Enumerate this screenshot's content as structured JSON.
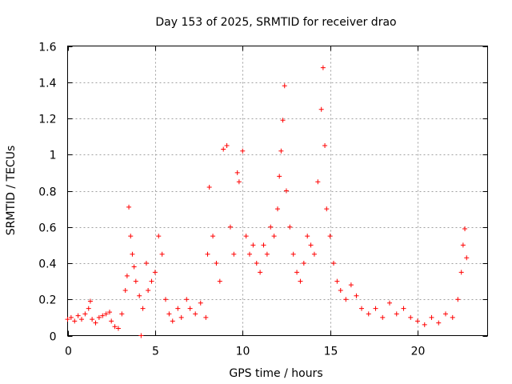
{
  "chart_data": {
    "type": "scatter",
    "title": "Day 153 of 2025, SRMTID for receiver drao",
    "xlabel": "GPS time / hours",
    "ylabel": "SRMTID / TECUs",
    "xlim": [
      0,
      24
    ],
    "ylim": [
      0,
      1.6
    ],
    "xticks": [
      0,
      5,
      10,
      15,
      20
    ],
    "yticks": [
      0,
      0.2,
      0.4,
      0.6,
      0.8,
      1,
      1.2,
      1.4,
      1.6
    ],
    "xtick_labels": [
      "0",
      "5",
      "10",
      "15",
      "20"
    ],
    "ytick_labels": [
      "0",
      "0.2",
      "0.4",
      "0.6",
      "0.8",
      "1",
      "1.2",
      "1.4",
      "1.6"
    ],
    "grid": true,
    "marker": "+",
    "series": [
      {
        "name": "SRMTID",
        "color": "#ff0000",
        "points": [
          [
            0.0,
            0.09
          ],
          [
            0.2,
            0.1
          ],
          [
            0.4,
            0.08
          ],
          [
            0.6,
            0.11
          ],
          [
            0.8,
            0.09
          ],
          [
            1.0,
            0.12
          ],
          [
            1.2,
            0.15
          ],
          [
            1.3,
            0.19
          ],
          [
            1.4,
            0.09
          ],
          [
            1.6,
            0.07
          ],
          [
            1.8,
            0.1
          ],
          [
            2.0,
            0.11
          ],
          [
            2.2,
            0.12
          ],
          [
            2.4,
            0.13
          ],
          [
            2.5,
            0.08
          ],
          [
            2.7,
            0.05
          ],
          [
            2.9,
            0.04
          ],
          [
            3.1,
            0.12
          ],
          [
            3.3,
            0.25
          ],
          [
            3.4,
            0.33
          ],
          [
            3.5,
            0.71
          ],
          [
            3.6,
            0.55
          ],
          [
            3.7,
            0.45
          ],
          [
            3.8,
            0.38
          ],
          [
            3.9,
            0.3
          ],
          [
            4.1,
            0.22
          ],
          [
            4.2,
            0.0
          ],
          [
            4.3,
            0.15
          ],
          [
            4.5,
            0.4
          ],
          [
            4.6,
            0.25
          ],
          [
            4.8,
            0.3
          ],
          [
            5.0,
            0.35
          ],
          [
            5.2,
            0.55
          ],
          [
            5.4,
            0.45
          ],
          [
            5.6,
            0.2
          ],
          [
            5.8,
            0.12
          ],
          [
            6.0,
            0.08
          ],
          [
            6.3,
            0.15
          ],
          [
            6.5,
            0.1
          ],
          [
            6.8,
            0.2
          ],
          [
            7.0,
            0.15
          ],
          [
            7.3,
            0.12
          ],
          [
            7.6,
            0.18
          ],
          [
            7.9,
            0.1
          ],
          [
            8.0,
            0.45
          ],
          [
            8.1,
            0.82
          ],
          [
            8.3,
            0.55
          ],
          [
            8.5,
            0.4
          ],
          [
            8.7,
            0.3
          ],
          [
            8.9,
            1.03
          ],
          [
            9.1,
            1.05
          ],
          [
            9.3,
            0.6
          ],
          [
            9.5,
            0.45
          ],
          [
            9.7,
            0.9
          ],
          [
            9.8,
            0.85
          ],
          [
            10.0,
            1.02
          ],
          [
            10.2,
            0.55
          ],
          [
            10.4,
            0.45
          ],
          [
            10.6,
            0.5
          ],
          [
            10.8,
            0.4
          ],
          [
            11.0,
            0.35
          ],
          [
            11.2,
            0.5
          ],
          [
            11.4,
            0.45
          ],
          [
            11.6,
            0.6
          ],
          [
            11.8,
            0.55
          ],
          [
            12.0,
            0.7
          ],
          [
            12.1,
            0.88
          ],
          [
            12.2,
            1.02
          ],
          [
            12.3,
            1.19
          ],
          [
            12.4,
            1.38
          ],
          [
            12.5,
            0.8
          ],
          [
            12.7,
            0.6
          ],
          [
            12.9,
            0.45
          ],
          [
            13.1,
            0.35
          ],
          [
            13.3,
            0.3
          ],
          [
            13.5,
            0.4
          ],
          [
            13.7,
            0.55
          ],
          [
            13.9,
            0.5
          ],
          [
            14.1,
            0.45
          ],
          [
            14.3,
            0.85
          ],
          [
            14.5,
            1.25
          ],
          [
            14.6,
            1.48
          ],
          [
            14.7,
            1.05
          ],
          [
            14.8,
            0.7
          ],
          [
            15.0,
            0.55
          ],
          [
            15.2,
            0.4
          ],
          [
            15.4,
            0.3
          ],
          [
            15.6,
            0.25
          ],
          [
            15.9,
            0.2
          ],
          [
            16.2,
            0.28
          ],
          [
            16.5,
            0.22
          ],
          [
            16.8,
            0.15
          ],
          [
            17.2,
            0.12
          ],
          [
            17.6,
            0.15
          ],
          [
            18.0,
            0.1
          ],
          [
            18.4,
            0.18
          ],
          [
            18.8,
            0.12
          ],
          [
            19.2,
            0.15
          ],
          [
            19.6,
            0.1
          ],
          [
            20.0,
            0.08
          ],
          [
            20.4,
            0.06
          ],
          [
            20.8,
            0.1
          ],
          [
            21.2,
            0.07
          ],
          [
            21.6,
            0.12
          ],
          [
            22.0,
            0.1
          ],
          [
            22.3,
            0.2
          ],
          [
            22.5,
            0.35
          ],
          [
            22.6,
            0.5
          ],
          [
            22.7,
            0.59
          ],
          [
            22.8,
            0.43
          ]
        ]
      }
    ]
  }
}
